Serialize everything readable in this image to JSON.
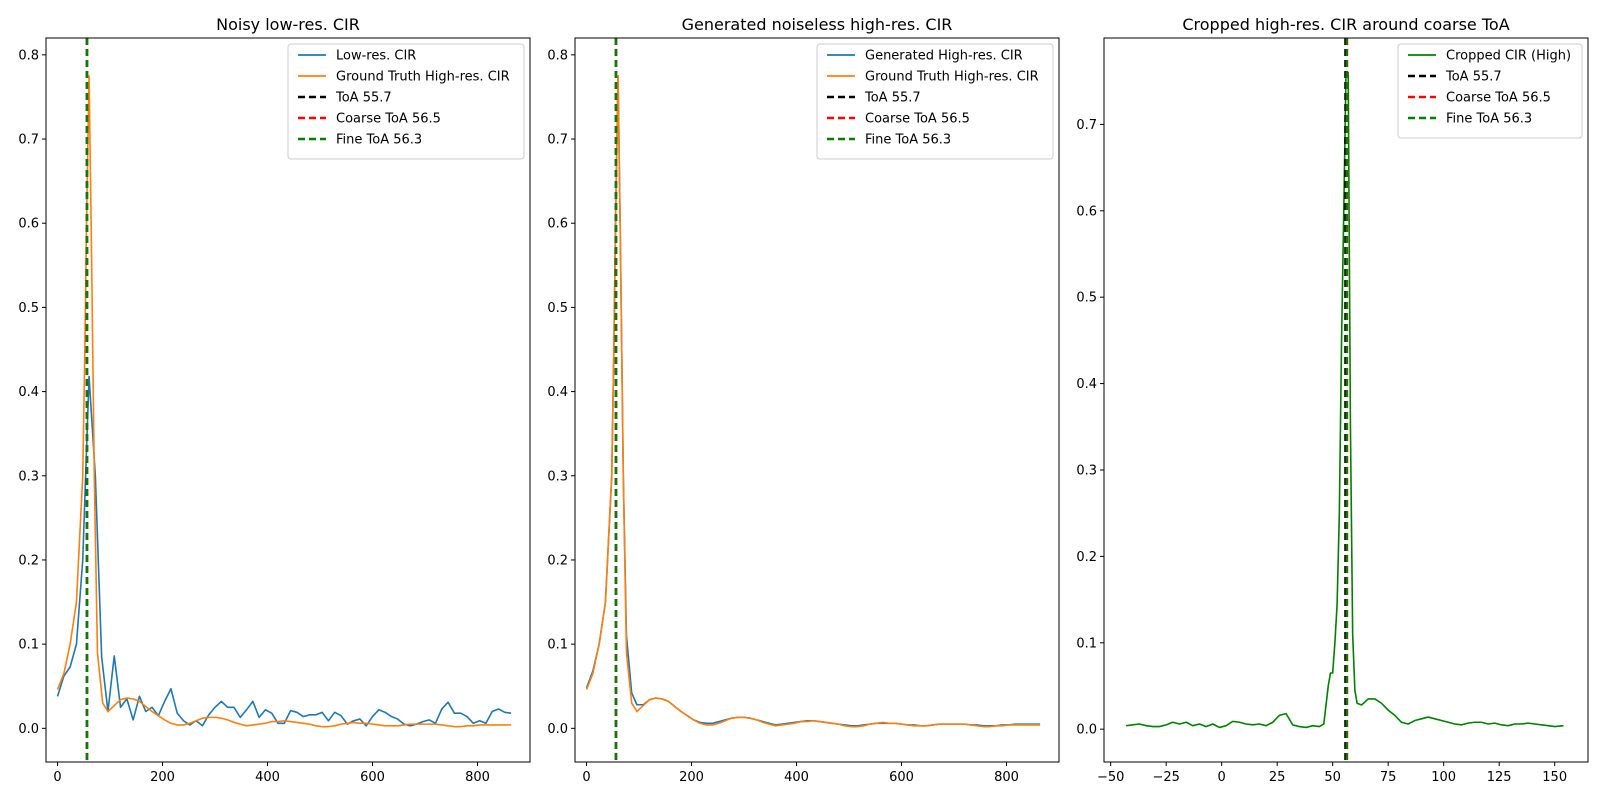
{
  "chart_data": [
    {
      "type": "line",
      "title": "Noisy low-res. CIR",
      "xlabel": "",
      "ylabel": "",
      "xlim": [
        -22,
        900
      ],
      "ylim": [
        -0.04,
        0.82
      ],
      "xticks": [
        0,
        200,
        400,
        600,
        800
      ],
      "xtick_labels": [
        "0",
        "200",
        "400",
        "600",
        "800"
      ],
      "yticks": [
        0.0,
        0.1,
        0.2,
        0.3,
        0.4,
        0.5,
        0.6,
        0.7,
        0.8
      ],
      "ytick_labels": [
        "0.0",
        "0.1",
        "0.2",
        "0.3",
        "0.4",
        "0.5",
        "0.6",
        "0.7",
        "0.8"
      ],
      "grid": false,
      "legend_position": "top-right",
      "series": [
        {
          "name": "Low-res. CIR",
          "color": "#1f77b4",
          "dash": "solid",
          "x": [
            0,
            12,
            24,
            36,
            48,
            60,
            72,
            84,
            96,
            108,
            120,
            132,
            144,
            156,
            168,
            180,
            192,
            204,
            216,
            228,
            240,
            252,
            264,
            276,
            288,
            300,
            312,
            324,
            336,
            348,
            360,
            372,
            384,
            396,
            408,
            420,
            432,
            444,
            456,
            468,
            480,
            492,
            504,
            516,
            528,
            540,
            552,
            564,
            576,
            588,
            600,
            612,
            624,
            636,
            648,
            660,
            672,
            684,
            696,
            708,
            720,
            732,
            744,
            756,
            768,
            780,
            792,
            804,
            816,
            828,
            840,
            852,
            864
          ],
          "y": [
            0.038,
            0.062,
            0.073,
            0.1,
            0.2,
            0.418,
            0.3,
            0.085,
            0.02,
            0.086,
            0.025,
            0.035,
            0.01,
            0.038,
            0.02,
            0.025,
            0.015,
            0.032,
            0.047,
            0.018,
            0.009,
            0.004,
            0.009,
            0.003,
            0.016,
            0.025,
            0.032,
            0.025,
            0.025,
            0.013,
            0.022,
            0.032,
            0.013,
            0.022,
            0.018,
            0.006,
            0.006,
            0.021,
            0.019,
            0.014,
            0.016,
            0.016,
            0.019,
            0.009,
            0.019,
            0.015,
            0.005,
            0.009,
            0.011,
            0.003,
            0.014,
            0.022,
            0.019,
            0.014,
            0.011,
            0.005,
            0.003,
            0.005,
            0.008,
            0.01,
            0.006,
            0.023,
            0.031,
            0.018,
            0.018,
            0.014,
            0.006,
            0.009,
            0.006,
            0.02,
            0.023,
            0.019,
            0.018
          ]
        },
        {
          "name": "Ground Truth High-res. CIR",
          "color": "#ff7f0e",
          "dash": "solid",
          "x": [
            0,
            12,
            24,
            36,
            48,
            52,
            55.7,
            60,
            64,
            70,
            76,
            86,
            96,
            108,
            120,
            132,
            144,
            156,
            168,
            180,
            192,
            204,
            216,
            228,
            240,
            252,
            264,
            276,
            288,
            300,
            312,
            324,
            336,
            348,
            360,
            372,
            384,
            396,
            408,
            420,
            432,
            444,
            456,
            468,
            480,
            492,
            504,
            516,
            528,
            540,
            552,
            564,
            576,
            588,
            600,
            612,
            624,
            636,
            648,
            660,
            672,
            684,
            696,
            708,
            720,
            732,
            744,
            756,
            768,
            780,
            792,
            804,
            816,
            828,
            840,
            852,
            864
          ],
          "y": [
            0.046,
            0.065,
            0.1,
            0.15,
            0.3,
            0.45,
            0.62,
            0.775,
            0.6,
            0.3,
            0.09,
            0.03,
            0.02,
            0.027,
            0.034,
            0.036,
            0.035,
            0.032,
            0.026,
            0.02,
            0.015,
            0.01,
            0.006,
            0.004,
            0.004,
            0.006,
            0.009,
            0.012,
            0.013,
            0.013,
            0.012,
            0.01,
            0.007,
            0.005,
            0.003,
            0.004,
            0.005,
            0.006,
            0.008,
            0.008,
            0.009,
            0.008,
            0.007,
            0.006,
            0.005,
            0.003,
            0.002,
            0.002,
            0.003,
            0.005,
            0.006,
            0.007,
            0.006,
            0.006,
            0.005,
            0.004,
            0.003,
            0.003,
            0.003,
            0.004,
            0.005,
            0.005,
            0.005,
            0.005,
            0.005,
            0.004,
            0.003,
            0.002,
            0.002,
            0.003,
            0.003,
            0.004,
            0.004,
            0.004,
            0.004,
            0.004,
            0.004
          ]
        }
      ],
      "vlines": [
        {
          "name": "ToA 55.7",
          "x": 55.7,
          "color": "#000000"
        },
        {
          "name": "Coarse ToA 56.5",
          "x": 56.5,
          "color": "#ff0000"
        },
        {
          "name": "Fine ToA 56.3",
          "x": 56.3,
          "color": "#008000"
        }
      ]
    },
    {
      "type": "line",
      "title": "Generated noiseless high-res. CIR",
      "xlabel": "",
      "ylabel": "",
      "xlim": [
        -22,
        900
      ],
      "ylim": [
        -0.04,
        0.82
      ],
      "xticks": [
        0,
        200,
        400,
        600,
        800
      ],
      "xtick_labels": [
        "0",
        "200",
        "400",
        "600",
        "800"
      ],
      "yticks": [
        0.0,
        0.1,
        0.2,
        0.3,
        0.4,
        0.5,
        0.6,
        0.7,
        0.8
      ],
      "ytick_labels": [
        "0.0",
        "0.1",
        "0.2",
        "0.3",
        "0.4",
        "0.5",
        "0.6",
        "0.7",
        "0.8"
      ],
      "grid": false,
      "legend_position": "top-right",
      "series": [
        {
          "name": "Generated High-res. CIR",
          "color": "#1f77b4",
          "dash": "solid",
          "x": [
            0,
            12,
            24,
            36,
            48,
            52,
            55.7,
            60,
            64,
            70,
            76,
            86,
            96,
            108,
            120,
            132,
            144,
            156,
            168,
            180,
            192,
            204,
            216,
            228,
            240,
            252,
            264,
            276,
            288,
            300,
            312,
            324,
            336,
            348,
            360,
            372,
            384,
            396,
            408,
            420,
            432,
            444,
            456,
            468,
            480,
            492,
            504,
            516,
            528,
            540,
            552,
            564,
            576,
            588,
            600,
            612,
            624,
            636,
            648,
            660,
            672,
            684,
            696,
            708,
            720,
            732,
            744,
            756,
            768,
            780,
            792,
            804,
            816,
            828,
            840,
            852,
            864
          ],
          "y": [
            0.048,
            0.068,
            0.1,
            0.15,
            0.3,
            0.45,
            0.62,
            0.775,
            0.6,
            0.3,
            0.11,
            0.042,
            0.028,
            0.028,
            0.034,
            0.036,
            0.035,
            0.032,
            0.026,
            0.02,
            0.015,
            0.01,
            0.007,
            0.006,
            0.006,
            0.008,
            0.01,
            0.012,
            0.013,
            0.013,
            0.012,
            0.01,
            0.008,
            0.006,
            0.004,
            0.005,
            0.006,
            0.007,
            0.008,
            0.009,
            0.009,
            0.008,
            0.007,
            0.006,
            0.005,
            0.004,
            0.003,
            0.003,
            0.004,
            0.005,
            0.006,
            0.006,
            0.006,
            0.006,
            0.005,
            0.004,
            0.004,
            0.003,
            0.003,
            0.004,
            0.005,
            0.005,
            0.005,
            0.005,
            0.005,
            0.004,
            0.004,
            0.003,
            0.003,
            0.003,
            0.004,
            0.004,
            0.005,
            0.005,
            0.005,
            0.005,
            0.005
          ]
        },
        {
          "name": "Ground Truth High-res. CIR",
          "color": "#ff7f0e",
          "dash": "solid",
          "x": [
            0,
            12,
            24,
            36,
            48,
            52,
            55.7,
            60,
            64,
            70,
            76,
            86,
            96,
            108,
            120,
            132,
            144,
            156,
            168,
            180,
            192,
            204,
            216,
            228,
            240,
            252,
            264,
            276,
            288,
            300,
            312,
            324,
            336,
            348,
            360,
            372,
            384,
            396,
            408,
            420,
            432,
            444,
            456,
            468,
            480,
            492,
            504,
            516,
            528,
            540,
            552,
            564,
            576,
            588,
            600,
            612,
            624,
            636,
            648,
            660,
            672,
            684,
            696,
            708,
            720,
            732,
            744,
            756,
            768,
            780,
            792,
            804,
            816,
            828,
            840,
            852,
            864
          ],
          "y": [
            0.046,
            0.065,
            0.1,
            0.15,
            0.3,
            0.45,
            0.62,
            0.775,
            0.6,
            0.3,
            0.09,
            0.03,
            0.02,
            0.027,
            0.034,
            0.036,
            0.035,
            0.032,
            0.026,
            0.02,
            0.015,
            0.01,
            0.006,
            0.004,
            0.004,
            0.006,
            0.009,
            0.012,
            0.013,
            0.013,
            0.012,
            0.01,
            0.007,
            0.005,
            0.003,
            0.004,
            0.005,
            0.006,
            0.008,
            0.008,
            0.009,
            0.008,
            0.007,
            0.006,
            0.005,
            0.003,
            0.002,
            0.002,
            0.003,
            0.005,
            0.006,
            0.007,
            0.006,
            0.006,
            0.005,
            0.004,
            0.003,
            0.003,
            0.003,
            0.004,
            0.005,
            0.005,
            0.005,
            0.005,
            0.005,
            0.004,
            0.003,
            0.002,
            0.002,
            0.003,
            0.003,
            0.004,
            0.004,
            0.004,
            0.004,
            0.004,
            0.004
          ]
        }
      ],
      "vlines": [
        {
          "name": "ToA 55.7",
          "x": 55.7,
          "color": "#000000"
        },
        {
          "name": "Coarse ToA 56.5",
          "x": 56.5,
          "color": "#ff0000"
        },
        {
          "name": "Fine ToA 56.3",
          "x": 56.3,
          "color": "#008000"
        }
      ]
    },
    {
      "type": "line",
      "title": "Cropped high-res. CIR around coarse ToA",
      "xlabel": "",
      "ylabel": "",
      "xlim": [
        -53,
        165
      ],
      "ylim": [
        -0.038,
        0.8
      ],
      "xticks": [
        -50,
        -25,
        0,
        25,
        50,
        75,
        100,
        125,
        150
      ],
      "xtick_labels": [
        "−50",
        "−25",
        "0",
        "25",
        "50",
        "75",
        "100",
        "125",
        "150"
      ],
      "yticks": [
        0.0,
        0.1,
        0.2,
        0.3,
        0.4,
        0.5,
        0.6,
        0.7
      ],
      "ytick_labels": [
        "0.0",
        "0.1",
        "0.2",
        "0.3",
        "0.4",
        "0.5",
        "0.6",
        "0.7"
      ],
      "grid": false,
      "legend_position": "top-right",
      "series": [
        {
          "name": "Cropped CIR (High)",
          "color": "#008000",
          "dash": "solid",
          "x": [
            -43,
            -40,
            -37,
            -34,
            -31,
            -28,
            -25,
            -22,
            -19,
            -16,
            -13,
            -10,
            -7,
            -4,
            -1,
            2,
            5,
            8,
            11,
            14,
            17,
            20,
            23,
            26,
            29,
            32,
            35,
            38,
            41,
            44,
            46,
            48,
            49,
            50,
            51,
            52,
            53,
            54,
            55,
            56,
            57,
            58,
            59,
            60,
            61,
            63,
            66,
            69,
            72,
            75,
            78,
            81,
            84,
            87,
            90,
            93,
            96,
            99,
            102,
            105,
            108,
            111,
            114,
            117,
            120,
            123,
            126,
            129,
            132,
            135,
            138,
            141,
            144,
            147,
            150,
            154
          ],
          "y": [
            0.004,
            0.005,
            0.006,
            0.004,
            0.003,
            0.003,
            0.005,
            0.008,
            0.006,
            0.008,
            0.004,
            0.006,
            0.003,
            0.006,
            0.002,
            0.004,
            0.009,
            0.008,
            0.006,
            0.005,
            0.006,
            0.004,
            0.008,
            0.016,
            0.018,
            0.005,
            0.003,
            0.002,
            0.004,
            0.003,
            0.006,
            0.05,
            0.065,
            0.065,
            0.1,
            0.145,
            0.25,
            0.45,
            0.6,
            0.76,
            0.76,
            0.35,
            0.11,
            0.045,
            0.03,
            0.028,
            0.035,
            0.035,
            0.03,
            0.022,
            0.016,
            0.008,
            0.006,
            0.01,
            0.012,
            0.014,
            0.012,
            0.01,
            0.008,
            0.006,
            0.005,
            0.007,
            0.008,
            0.008,
            0.006,
            0.007,
            0.005,
            0.004,
            0.006,
            0.006,
            0.007,
            0.006,
            0.005,
            0.004,
            0.003,
            0.004
          ]
        }
      ],
      "vlines": [
        {
          "name": "ToA 55.7",
          "x": 55.7,
          "color": "#000000"
        },
        {
          "name": "Coarse ToA 56.5",
          "x": 56.5,
          "color": "#ff0000"
        },
        {
          "name": "Fine ToA 56.3",
          "x": 56.3,
          "color": "#008000"
        }
      ]
    }
  ]
}
